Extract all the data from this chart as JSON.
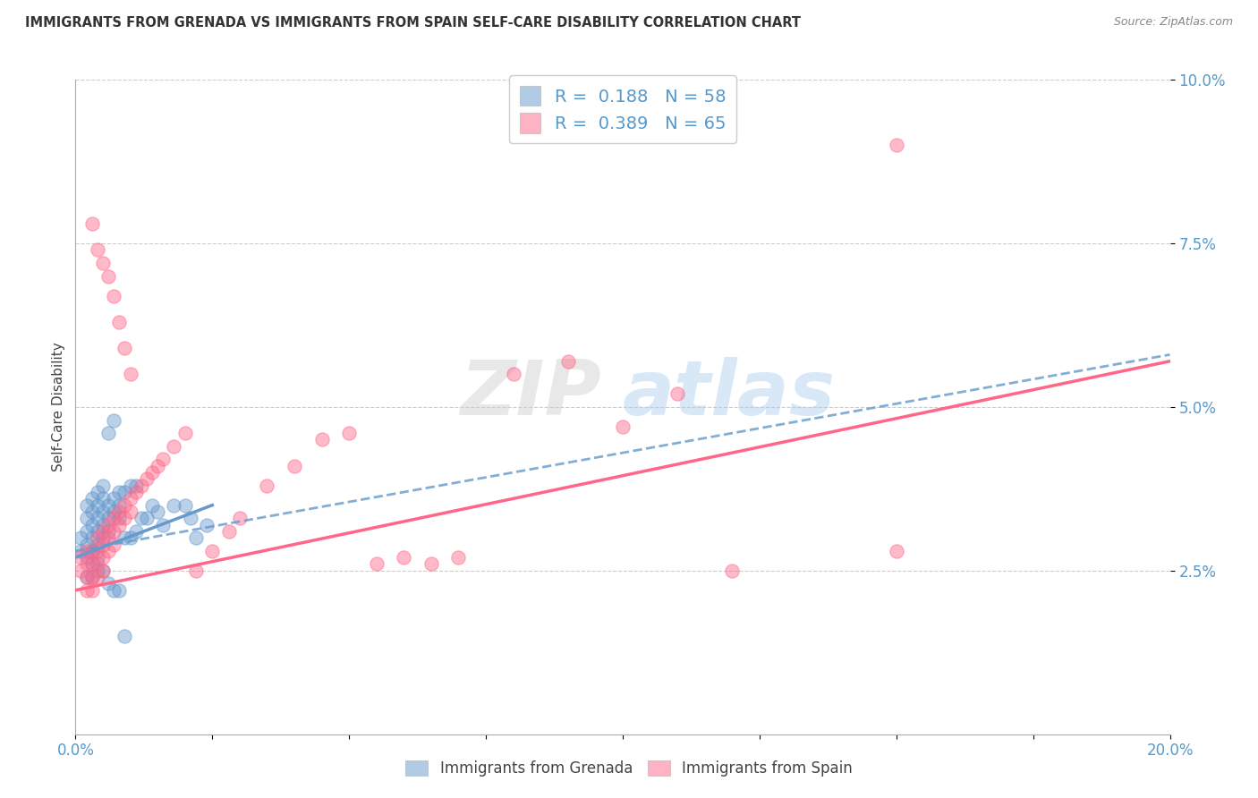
{
  "title": "IMMIGRANTS FROM GRENADA VS IMMIGRANTS FROM SPAIN SELF-CARE DISABILITY CORRELATION CHART",
  "source": "Source: ZipAtlas.com",
  "ylabel": "Self-Care Disability",
  "xlim": [
    0.0,
    0.2
  ],
  "ylim": [
    0.0,
    0.1
  ],
  "grenada_color": "#6699CC",
  "spain_color": "#FF6688",
  "grenada_R": 0.188,
  "grenada_N": 58,
  "spain_R": 0.389,
  "spain_N": 65,
  "watermark_zip": "ZIP",
  "watermark_atlas": "atlas",
  "grenada_line": {
    "x0": 0.0,
    "y0": 0.028,
    "x1": 0.2,
    "y1": 0.058
  },
  "spain_line": {
    "x0": 0.0,
    "y0": 0.022,
    "x1": 0.2,
    "y1": 0.057
  },
  "grenada_scatter_x": [
    0.001,
    0.001,
    0.002,
    0.002,
    0.002,
    0.002,
    0.002,
    0.003,
    0.003,
    0.003,
    0.003,
    0.003,
    0.003,
    0.004,
    0.004,
    0.004,
    0.004,
    0.004,
    0.004,
    0.005,
    0.005,
    0.005,
    0.005,
    0.005,
    0.006,
    0.006,
    0.006,
    0.006,
    0.007,
    0.007,
    0.007,
    0.008,
    0.008,
    0.008,
    0.009,
    0.009,
    0.01,
    0.01,
    0.011,
    0.011,
    0.012,
    0.013,
    0.014,
    0.015,
    0.016,
    0.018,
    0.02,
    0.021,
    0.022,
    0.024,
    0.002,
    0.003,
    0.004,
    0.005,
    0.006,
    0.007,
    0.008,
    0.009
  ],
  "grenada_scatter_y": [
    0.03,
    0.028,
    0.035,
    0.033,
    0.031,
    0.029,
    0.027,
    0.036,
    0.034,
    0.032,
    0.03,
    0.028,
    0.026,
    0.037,
    0.035,
    0.033,
    0.031,
    0.029,
    0.027,
    0.038,
    0.036,
    0.034,
    0.032,
    0.03,
    0.046,
    0.035,
    0.033,
    0.031,
    0.048,
    0.036,
    0.034,
    0.037,
    0.035,
    0.033,
    0.037,
    0.03,
    0.038,
    0.03,
    0.038,
    0.031,
    0.033,
    0.033,
    0.035,
    0.034,
    0.032,
    0.035,
    0.035,
    0.033,
    0.03,
    0.032,
    0.024,
    0.024,
    0.025,
    0.025,
    0.023,
    0.022,
    0.022,
    0.015
  ],
  "spain_scatter_x": [
    0.001,
    0.001,
    0.002,
    0.002,
    0.002,
    0.002,
    0.003,
    0.003,
    0.003,
    0.003,
    0.004,
    0.004,
    0.004,
    0.004,
    0.005,
    0.005,
    0.005,
    0.005,
    0.006,
    0.006,
    0.006,
    0.007,
    0.007,
    0.007,
    0.008,
    0.008,
    0.009,
    0.009,
    0.01,
    0.01,
    0.011,
    0.012,
    0.013,
    0.014,
    0.015,
    0.016,
    0.018,
    0.02,
    0.022,
    0.025,
    0.028,
    0.03,
    0.035,
    0.04,
    0.045,
    0.05,
    0.055,
    0.06,
    0.065,
    0.07,
    0.08,
    0.09,
    0.1,
    0.11,
    0.12,
    0.15,
    0.003,
    0.004,
    0.005,
    0.006,
    0.007,
    0.008,
    0.009,
    0.01,
    0.15
  ],
  "spain_scatter_y": [
    0.027,
    0.025,
    0.028,
    0.026,
    0.024,
    0.022,
    0.028,
    0.026,
    0.024,
    0.022,
    0.03,
    0.028,
    0.026,
    0.024,
    0.031,
    0.029,
    0.027,
    0.025,
    0.032,
    0.03,
    0.028,
    0.033,
    0.031,
    0.029,
    0.034,
    0.032,
    0.035,
    0.033,
    0.036,
    0.034,
    0.037,
    0.038,
    0.039,
    0.04,
    0.041,
    0.042,
    0.044,
    0.046,
    0.025,
    0.028,
    0.031,
    0.033,
    0.038,
    0.041,
    0.045,
    0.046,
    0.026,
    0.027,
    0.026,
    0.027,
    0.055,
    0.057,
    0.047,
    0.052,
    0.025,
    0.028,
    0.078,
    0.074,
    0.072,
    0.07,
    0.067,
    0.063,
    0.059,
    0.055,
    0.09
  ]
}
